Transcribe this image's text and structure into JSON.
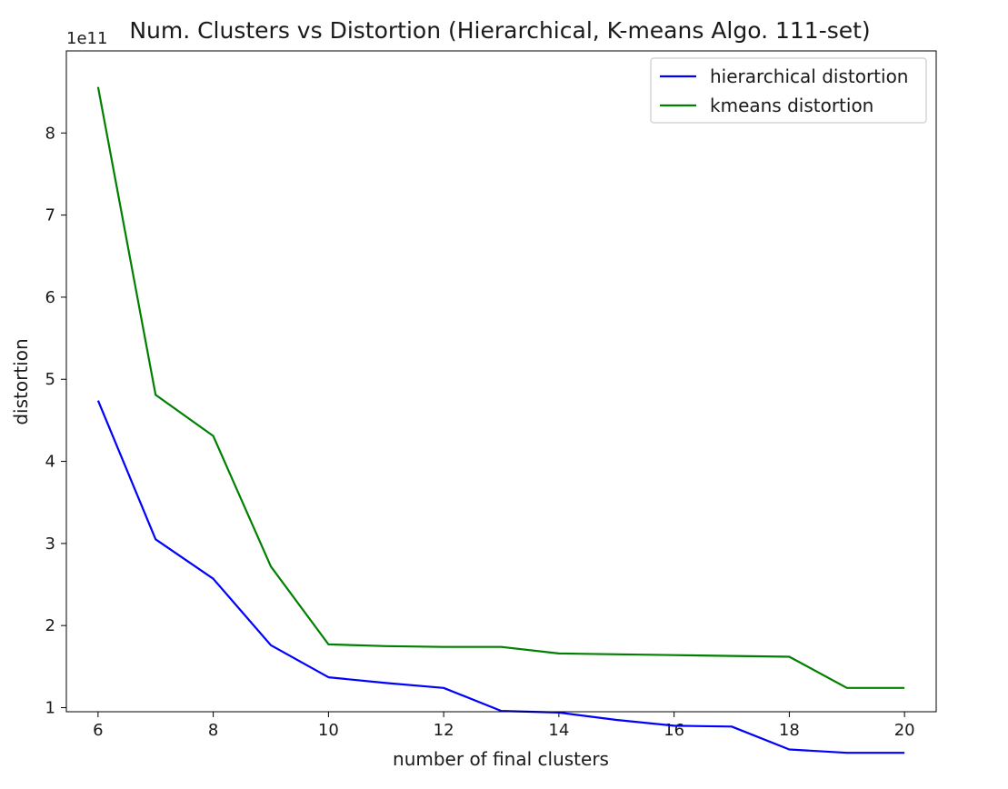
{
  "chart_data": {
    "type": "line",
    "title": "Num. Clusters vs Distortion (Hierarchical, K-means Algo. 111-set)",
    "xlabel": "number of final clusters",
    "ylabel": "distortion",
    "y_offset_label": "1e11",
    "xlim": [
      5.45,
      20.55
    ],
    "ylim": [
      0.95,
      9.0
    ],
    "x_ticks": [
      6,
      8,
      10,
      12,
      14,
      16,
      18,
      20
    ],
    "x_tick_labels": [
      "6",
      "8",
      "10",
      "12",
      "14",
      "16",
      "18",
      "20"
    ],
    "y_ticks": [
      1,
      2,
      3,
      4,
      5,
      6,
      7,
      8
    ],
    "y_tick_labels": [
      "1",
      "2",
      "3",
      "4",
      "5",
      "6",
      "7",
      "8"
    ],
    "x": [
      6,
      7,
      8,
      9,
      10,
      11,
      12,
      13,
      14,
      15,
      16,
      17,
      18,
      19,
      20
    ],
    "series": [
      {
        "name": "hierarchical distortion",
        "color": "#0000ff",
        "values": [
          4.74,
          3.05,
          2.57,
          1.76,
          1.37,
          1.3,
          1.24,
          0.96,
          0.94,
          0.85,
          0.78,
          0.77,
          0.49,
          0.45,
          0.45
        ]
      },
      {
        "name": "kmeans distortion",
        "color": "#008000",
        "values": [
          8.56,
          4.81,
          4.31,
          2.72,
          1.77,
          1.75,
          1.74,
          1.74,
          1.66,
          1.65,
          1.64,
          1.63,
          1.62,
          1.24,
          1.24
        ]
      }
    ],
    "grid": false,
    "legend_position": "top-right"
  }
}
